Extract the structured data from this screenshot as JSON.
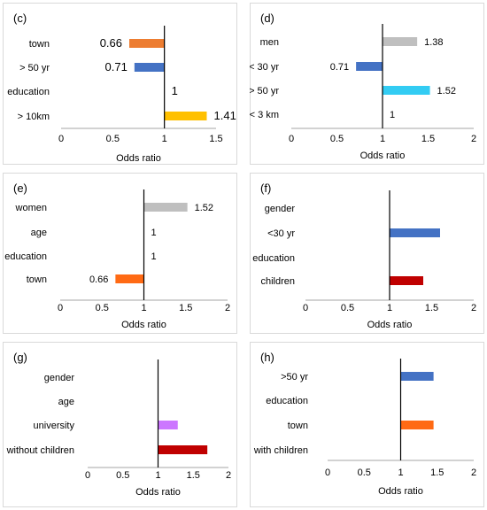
{
  "chart_data": [
    {
      "type": "bar",
      "orientation": "horizontal",
      "panel_label": "(c)",
      "categories": [
        "town",
        "> 50 yr",
        "education",
        "> 10km"
      ],
      "values": [
        0.66,
        0.71,
        1,
        1.41
      ],
      "value_labels": [
        "0.66",
        "0.71",
        "1",
        "1.41"
      ],
      "colors": [
        "#ED7D31",
        "#4472C4",
        "",
        "#FFC000"
      ],
      "baseline": 1,
      "xlabel": "Odds ratio",
      "xlim": [
        0,
        1.5
      ],
      "xticks": [
        "0",
        "0.5",
        "1",
        "1.5"
      ],
      "label_position": "left-of-bar",
      "grid": false
    },
    {
      "type": "bar",
      "orientation": "horizontal",
      "panel_label": "(d)",
      "categories": [
        "men",
        "< 30 yr",
        "> 50 yr",
        "< 3 km"
      ],
      "values": [
        1.38,
        0.71,
        1.52,
        1
      ],
      "value_labels": [
        "1.38",
        "0.71",
        "1.52",
        "1"
      ],
      "colors": [
        "#BFBFBF",
        "#4472C4",
        "#33CCF3",
        ""
      ],
      "baseline": 1,
      "xlabel": "Odds ratio",
      "xlim": [
        0,
        2
      ],
      "xticks": [
        "0",
        "0.5",
        "1",
        "1.5",
        "2"
      ],
      "grid": false
    },
    {
      "type": "bar",
      "orientation": "horizontal",
      "panel_label": "(e)",
      "categories": [
        "women",
        "age",
        "education",
        "town"
      ],
      "values": [
        1.52,
        1,
        1,
        0.66
      ],
      "value_labels": [
        "1.52",
        "1",
        "1",
        "0.66"
      ],
      "colors": [
        "#BFBFBF",
        "",
        "",
        "#FF6A14"
      ],
      "baseline": 1,
      "xlabel": "Odds ratio",
      "xlim": [
        0,
        2
      ],
      "xticks": [
        "0",
        "0.5",
        "1",
        "1.5",
        "2"
      ],
      "grid": false
    },
    {
      "type": "bar",
      "orientation": "horizontal",
      "panel_label": "(f)",
      "categories": [
        "gender",
        "<30 yr",
        "education",
        "children"
      ],
      "values": [
        1,
        1.6,
        1,
        1.4
      ],
      "value_labels": [
        "",
        "",
        "",
        ""
      ],
      "colors": [
        "",
        "#4472C4",
        "",
        "#C00000"
      ],
      "baseline": 1,
      "xlabel": "Odds ratio",
      "xlim": [
        0,
        2
      ],
      "xticks": [
        "0",
        "0.5",
        "1",
        "1.5",
        "2"
      ],
      "grid": false
    },
    {
      "type": "bar",
      "orientation": "horizontal",
      "panel_label": "(g)",
      "categories": [
        "gender",
        "age",
        "university",
        "without children"
      ],
      "values": [
        1,
        1,
        1.28,
        1.7
      ],
      "value_labels": [
        "",
        "",
        "",
        ""
      ],
      "colors": [
        "",
        "",
        "#CC77FF",
        "#C00000"
      ],
      "baseline": 1,
      "xlabel": "Odds ratio",
      "xlim": [
        0,
        2
      ],
      "xticks": [
        "0",
        "0.5",
        "1",
        "1.5",
        "2"
      ],
      "grid": false
    },
    {
      "type": "bar",
      "orientation": "horizontal",
      "panel_label": "(h)",
      "categories": [
        ">50 yr",
        "education",
        "town",
        "with children"
      ],
      "values": [
        1.45,
        1,
        1.45,
        1
      ],
      "value_labels": [
        "",
        "",
        "",
        ""
      ],
      "colors": [
        "#4472C4",
        "",
        "#FF6A14",
        ""
      ],
      "baseline": 1,
      "xlabel": "Odds ratio",
      "xlim": [
        0,
        2
      ],
      "xticks": [
        "0",
        "0.5",
        "1",
        "1.5",
        "2"
      ],
      "grid": false
    }
  ]
}
